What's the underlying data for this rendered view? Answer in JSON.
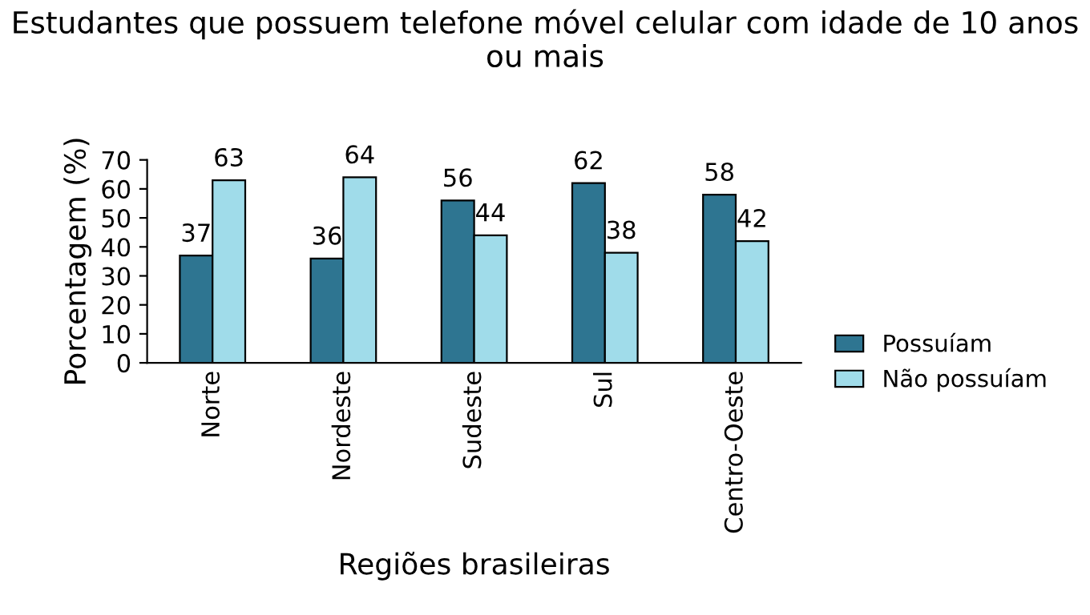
{
  "chart_data": {
    "type": "bar",
    "title": "Estudantes que possuem telefone móvel celular com idade de 10 anos ou mais",
    "xlabel": "Regiões brasileiras",
    "ylabel": "Porcentagem (%)",
    "categories": [
      "Norte",
      "Nordeste",
      "Sudeste",
      "Sul",
      "Centro-Oeste"
    ],
    "series": [
      {
        "name": "Possuíam",
        "color": "#2e7591",
        "values": [
          37,
          36,
          56,
          62,
          58
        ]
      },
      {
        "name": "Não possuíam",
        "color": "#a0dcea",
        "values": [
          63,
          64,
          44,
          38,
          42
        ]
      }
    ],
    "ylim": [
      0,
      70
    ],
    "yticks": [
      0,
      10,
      20,
      30,
      40,
      50,
      60,
      70
    ],
    "grid": false,
    "legend": "right",
    "data_labels": true
  }
}
